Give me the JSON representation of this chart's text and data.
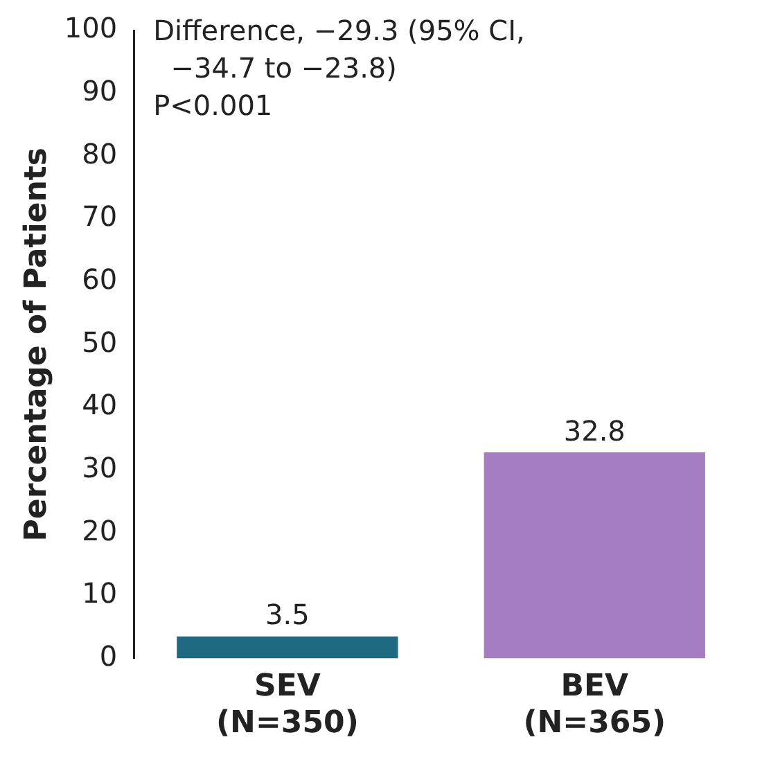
{
  "chart_data": {
    "type": "bar",
    "ylabel": "Percentage of Patients",
    "categories": [
      "SEV\n(N=350)",
      "BEV\n(N=365)"
    ],
    "values": [
      3.5,
      32.8
    ],
    "colors": [
      "#1f6a80",
      "#a57dc1"
    ],
    "ylim": [
      0,
      100
    ],
    "yticks": [
      0,
      10,
      20,
      30,
      40,
      50,
      60,
      70,
      80,
      90,
      100
    ],
    "data_labels": true,
    "grid": false,
    "legend": false,
    "annotations": [
      "Difference, −29.3 (95% CI,\n  −34.7 to −23.8)",
      "P<0.001"
    ]
  }
}
